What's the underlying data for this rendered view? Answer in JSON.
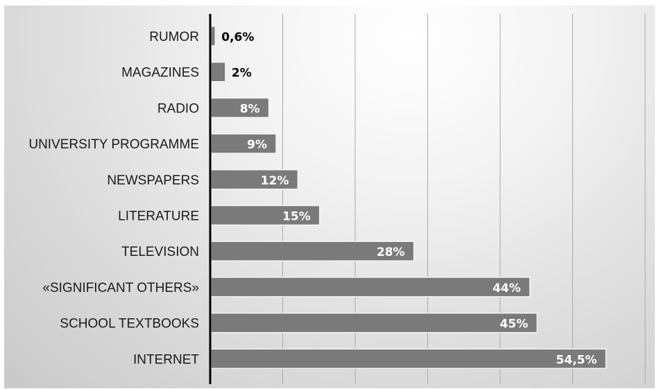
{
  "chart_data": {
    "type": "bar",
    "orientation": "horizontal",
    "categories": [
      "RUMOR",
      "MAGAZINES",
      "RADIO",
      "UNIVERSITY PROGRAMME",
      "NEWSPAPERS",
      "LITERATURE",
      "TELEVISION",
      "«SIGNIFICANT OTHERS»",
      "SCHOOL TEXTBOOKS",
      "INTERNET"
    ],
    "values": [
      0.6,
      2,
      8,
      9,
      12,
      15,
      28,
      44,
      45,
      54.5
    ],
    "value_labels": [
      "0,6%",
      "2%",
      "8%",
      "9%",
      "12%",
      "15%",
      "28%",
      "44%",
      "45%",
      "54,5%"
    ],
    "xlim": [
      0,
      60
    ],
    "grid": true,
    "colors": {
      "bar": "#7a7a7a",
      "bar_edge": "#f5f5f5",
      "axis": "#000000",
      "gridline": "#a8a8a8",
      "label_inside": "#ffffff",
      "label_outside": "#000000"
    }
  }
}
